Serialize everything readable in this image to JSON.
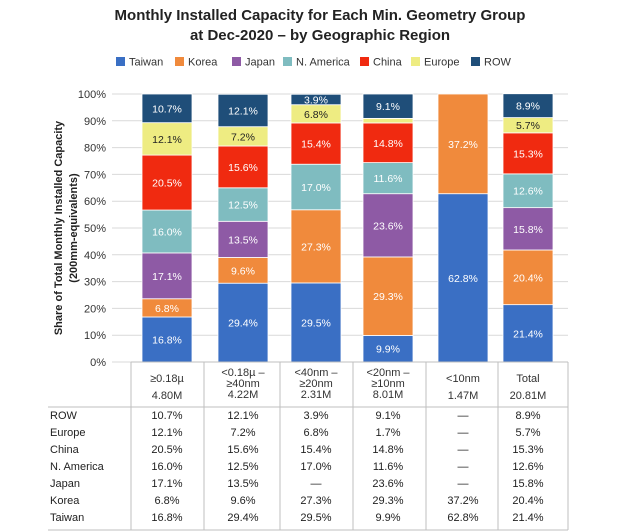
{
  "chart_data": {
    "type": "bar",
    "stacked": true,
    "title_line1": "Monthly Installed Capacity for Each Min. Geometry Group",
    "title_line2": "at Dec-2020 – by Geographic Region",
    "ylabel_line1": "Share of Total Monthly Installed Capacity",
    "ylabel_line2": "(200mm-equivalents)",
    "ylim": [
      0,
      100
    ],
    "yticks": [
      "0%",
      "10%",
      "20%",
      "30%",
      "40%",
      "50%",
      "60%",
      "70%",
      "80%",
      "90%",
      "100%"
    ],
    "grid": true,
    "legend_position": "top",
    "categories": [
      {
        "line1": "≥0.18µ",
        "line2": "4.80M"
      },
      {
        "line1": "<0.18µ –",
        "line2": "≥40nm",
        "line3": "4.22M"
      },
      {
        "line1": "<40nm –",
        "line2": "≥20nm",
        "line3": "2.31M"
      },
      {
        "line1": "<20nm –",
        "line2": "≥10nm",
        "line3": "8.01M"
      },
      {
        "line1": "<10nm",
        "line2": "1.47M"
      },
      {
        "line1": "Total",
        "line2": "20.81M"
      }
    ],
    "series": [
      {
        "name": "Taiwan",
        "color": "#3a6fc4",
        "values": [
          16.8,
          29.4,
          29.5,
          9.9,
          62.8,
          21.4
        ],
        "labels": [
          "16.8%",
          "29.4%",
          "29.5%",
          "9.9%",
          "62.8%",
          "21.4%"
        ],
        "table": [
          "16.8%",
          "29.4%",
          "29.5%",
          "9.9%",
          "62.8%",
          "21.4%"
        ]
      },
      {
        "name": "Korea",
        "color": "#f08a3c",
        "values": [
          6.8,
          9.6,
          27.3,
          29.3,
          37.2,
          20.4
        ],
        "labels": [
          "6.8%",
          "9.6%",
          "27.3%",
          "29.3%",
          "37.2%",
          "20.4%"
        ],
        "table": [
          "6.8%",
          "9.6%",
          "27.3%",
          "29.3%",
          "37.2%",
          "20.4%"
        ]
      },
      {
        "name": "Japan",
        "color": "#8e5aa5",
        "values": [
          17.1,
          13.5,
          0,
          23.6,
          0,
          15.8
        ],
        "labels": [
          "17.1%",
          "13.5%",
          "",
          "23.6%",
          "",
          "15.8%"
        ],
        "table": [
          "17.1%",
          "13.5%",
          "—",
          "23.6%",
          "—",
          "15.8%"
        ]
      },
      {
        "name": "N. America",
        "color": "#7fbcc0",
        "values": [
          16.0,
          12.5,
          17.0,
          11.6,
          0,
          12.6
        ],
        "labels": [
          "16.0%",
          "12.5%",
          "17.0%",
          "11.6%",
          "",
          "12.6%"
        ],
        "table": [
          "16.0%",
          "12.5%",
          "17.0%",
          "11.6%",
          "—",
          "12.6%"
        ]
      },
      {
        "name": "China",
        "color": "#f02a10",
        "values": [
          20.5,
          15.6,
          15.4,
          14.8,
          0,
          15.3
        ],
        "labels": [
          "20.5%",
          "15.6%",
          "15.4%",
          "14.8%",
          "",
          "15.3%"
        ],
        "table": [
          "20.5%",
          "15.6%",
          "15.4%",
          "14.8%",
          "—",
          "15.3%"
        ]
      },
      {
        "name": "Europe",
        "color": "#eeec82",
        "values": [
          12.1,
          7.2,
          6.8,
          1.7,
          0,
          5.7
        ],
        "labels": [
          "12.1%",
          "7.2%",
          "6.8%",
          "",
          "",
          "5.7%"
        ],
        "table": [
          "12.1%",
          "7.2%",
          "6.8%",
          "1.7%",
          "—",
          "5.7%"
        ]
      },
      {
        "name": "ROW",
        "color": "#1f4e79",
        "values": [
          10.7,
          12.1,
          3.9,
          9.1,
          0,
          8.9
        ],
        "labels": [
          "10.7%",
          "12.1%",
          "3.9%",
          "9.1%",
          "",
          "8.9%"
        ],
        "table": [
          "10.7%",
          "12.1%",
          "3.9%",
          "9.1%",
          "—",
          "8.9%"
        ]
      }
    ],
    "table_row_order": [
      "ROW",
      "Europe",
      "China",
      "N. America",
      "Japan",
      "Korea",
      "Taiwan"
    ]
  }
}
